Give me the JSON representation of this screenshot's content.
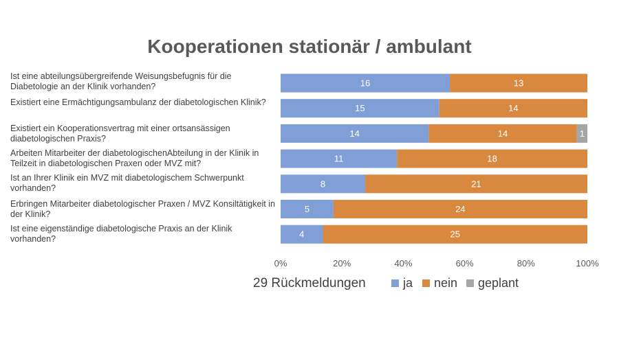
{
  "chart_data": {
    "type": "bar",
    "stacked": "percent",
    "title": "Kooperationen stationär / ambulant",
    "categories": [
      "Ist eine abteilungsübergreifende Weisungsbefugnis für die Diabetologie an der Klinik vorhanden?",
      "Existiert eine Ermächtigungsambulanz der diabetologischen Klinik?",
      "Existiert ein Kooperationsvertrag mit einer ortsansässigen diabetologischen Praxis?",
      "Arbeiten Mitarbeiter der diabetologischenAbteilung in der Klinik in Teilzeit in diabetologischen Praxen oder MVZ mit?",
      "Ist an Ihrer Klinik ein MVZ mit diabetologischem Schwerpunkt vorhanden?",
      "Erbringen Mitarbeiter diabetologischer Praxen / MVZ Konsiltätigkeit in der Klinik?",
      "Ist eine eigenständige diabetologische Praxis an der Klinik vorhanden?"
    ],
    "series": [
      {
        "name": "ja",
        "color": "#7f9fd6",
        "values": [
          16,
          15,
          14,
          11,
          8,
          5,
          4
        ]
      },
      {
        "name": "nein",
        "color": "#d9883f",
        "values": [
          13,
          14,
          14,
          18,
          21,
          24,
          25
        ]
      },
      {
        "name": "geplant",
        "color": "#a5a5a5",
        "values": [
          0,
          0,
          1,
          0,
          0,
          0,
          0
        ]
      }
    ],
    "xticks": [
      "0%",
      "20%",
      "40%",
      "60%",
      "80%",
      "100%"
    ],
    "xlim": [
      0,
      100
    ],
    "legend": "bottom",
    "footnote": "29 Rückmeldungen"
  }
}
